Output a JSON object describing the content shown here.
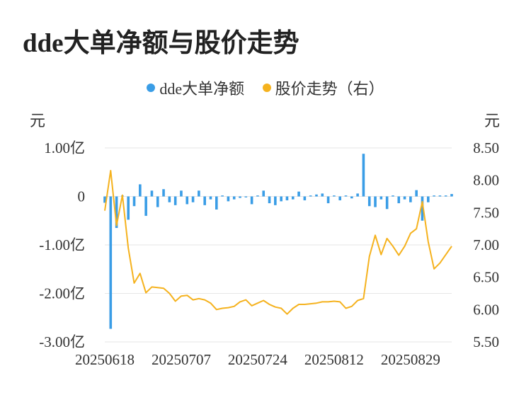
{
  "title": "dde大单净额与股价走势",
  "legend": {
    "dde_label": "dde大单净额",
    "price_label": "股价走势（右）"
  },
  "colors": {
    "bar": "#3a9de6",
    "line": "#f5b21e",
    "grid": "#e6e6e6",
    "text": "#333333"
  },
  "chart_data": {
    "type": "bar+line",
    "left_axis": {
      "unit_label": "元",
      "ticks": [
        1.0,
        0,
        -1.0,
        -2.0,
        -3.0
      ],
      "tick_labels": [
        "1.00亿",
        "0",
        "-1.00亿",
        "-2.00亿",
        "-3.00亿"
      ],
      "ylim": [
        -3.0,
        1.0
      ],
      "unit": "亿"
    },
    "right_axis": {
      "unit_label": "元",
      "ticks": [
        8.5,
        8.0,
        7.5,
        7.0,
        6.5,
        6.0,
        5.5
      ],
      "tick_labels": [
        "8.50",
        "8.00",
        "7.50",
        "7.00",
        "6.50",
        "6.00",
        "5.50"
      ],
      "ylim": [
        5.5,
        8.5
      ]
    },
    "x_tick_labels": [
      "20250618",
      "20250707",
      "20250724",
      "20250812",
      "20250829"
    ],
    "x_tick_indices": [
      0,
      13,
      26,
      39,
      52
    ],
    "n_points": 60,
    "grid": true,
    "legend_position": "top-center",
    "series": [
      {
        "name": "dde大单净额",
        "kind": "bar",
        "axis": "left",
        "values": [
          -0.13,
          -2.73,
          -0.65,
          0.02,
          -0.48,
          -0.2,
          0.25,
          -0.4,
          0.12,
          -0.22,
          0.15,
          -0.12,
          -0.18,
          0.12,
          -0.16,
          -0.12,
          0.12,
          -0.18,
          -0.06,
          -0.27,
          0.02,
          -0.1,
          -0.06,
          -0.03,
          -0.02,
          -0.16,
          0.02,
          0.12,
          -0.14,
          -0.18,
          -0.1,
          -0.08,
          -0.06,
          0.1,
          -0.08,
          0.02,
          0.04,
          0.06,
          -0.14,
          0.02,
          -0.08,
          0.02,
          -0.04,
          0.06,
          0.88,
          -0.2,
          -0.22,
          -0.06,
          -0.26,
          0.02,
          -0.14,
          -0.06,
          -0.12,
          0.13,
          -0.5,
          -0.12,
          0.02,
          0.02,
          0.02,
          0.05
        ]
      },
      {
        "name": "股价走势（右）",
        "kind": "line",
        "axis": "right",
        "values": [
          7.53,
          8.15,
          7.3,
          7.77,
          6.95,
          6.41,
          6.56,
          6.26,
          6.35,
          6.34,
          6.33,
          6.25,
          6.13,
          6.21,
          6.22,
          6.15,
          6.17,
          6.15,
          6.1,
          6.0,
          6.02,
          6.03,
          6.05,
          6.12,
          6.15,
          6.06,
          6.1,
          6.14,
          6.08,
          6.04,
          6.02,
          5.93,
          6.02,
          6.08,
          6.08,
          6.09,
          6.1,
          6.12,
          6.12,
          6.13,
          6.12,
          6.02,
          6.05,
          6.14,
          6.17,
          6.82,
          7.15,
          6.85,
          7.1,
          6.98,
          6.84,
          6.98,
          7.18,
          7.25,
          7.67,
          7.05,
          6.63,
          6.72,
          6.85,
          6.98
        ]
      }
    ]
  }
}
